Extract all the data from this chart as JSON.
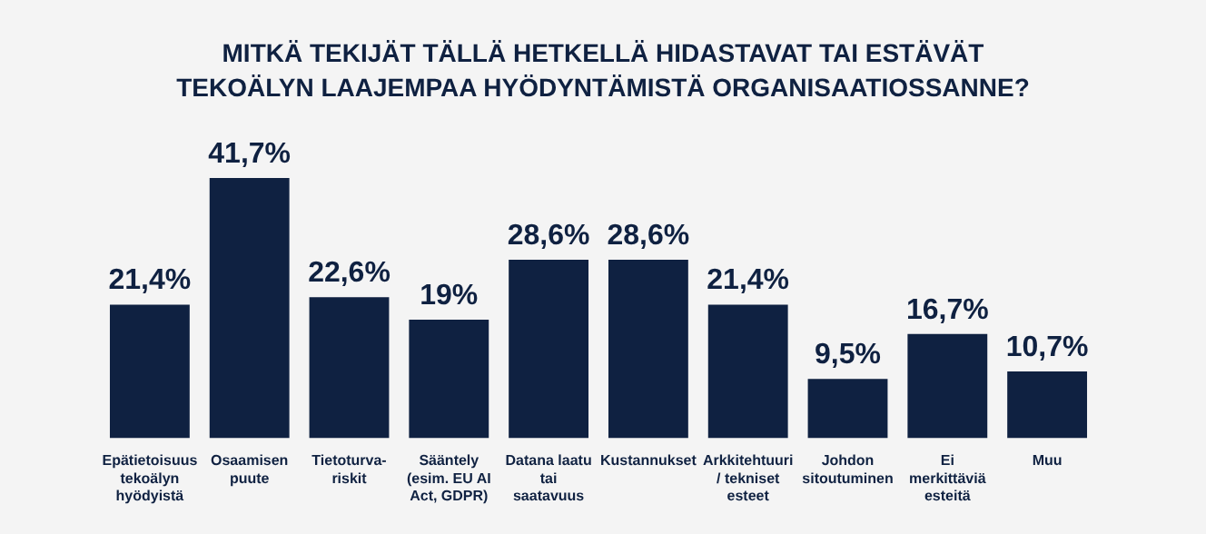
{
  "chart_data": {
    "type": "bar",
    "title": "MITKÄ TEKIJÄT TÄLLÄ HETKELLÄ HIDASTAVAT TAI ESTÄVÄT TEKOÄLYN LAAJEMPAA HYÖDYNTÄMISTÄ ORGANISAATIOSSANNE?",
    "categories": [
      "Epätietoisuus tekoälyn hyödyistä",
      "Osaamisen puute",
      "Tietoturva-riskit",
      "Sääntely (esim. EU AI Act, GDPR)",
      "Datana laatu tai saatavuus",
      "Kustannukset",
      "Arkkitehtuuri / tekniset esteet",
      "Johdon sitoutuminen",
      "Ei merkittäviä esteitä",
      "Muu"
    ],
    "values": [
      21.4,
      41.7,
      22.6,
      19,
      28.6,
      28.6,
      21.4,
      9.5,
      16.7,
      10.7
    ],
    "value_labels": [
      "21,4%",
      "41,7%",
      "22,6%",
      "19%",
      "28,6%",
      "28,6%",
      "21,4%",
      "9,5%",
      "16,7%",
      "10,7%"
    ],
    "color": "#0f2141",
    "grid": false,
    "legend": false
  }
}
